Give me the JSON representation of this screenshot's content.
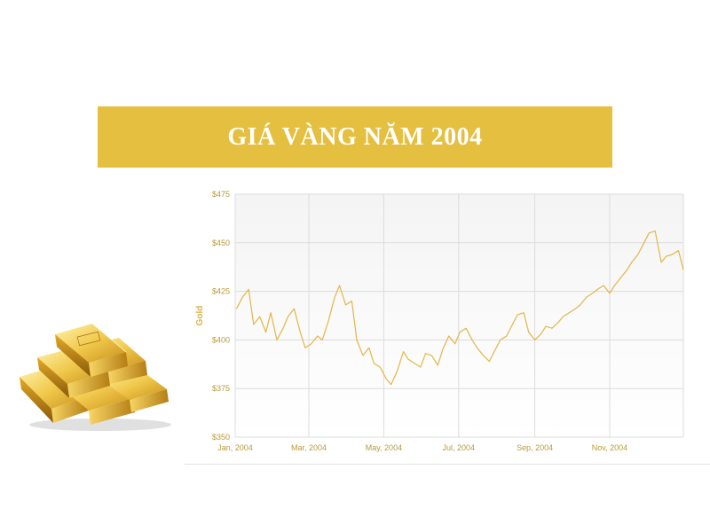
{
  "banner": {
    "title": "GIÁ VÀNG NĂM 2004"
  },
  "colors": {
    "accent": "#e5bf3f",
    "line": "#e2b648",
    "tick_text": "#b89a3a"
  },
  "illustration": {
    "icon": "gold-bars-icon"
  },
  "chart_data": {
    "type": "line",
    "title": "",
    "xlabel": "",
    "ylabel": "Gold",
    "ylim": [
      350,
      475
    ],
    "y_ticks": [
      "$350",
      "$375",
      "$400",
      "$425",
      "$450",
      "$475"
    ],
    "y_tick_values": [
      350,
      375,
      400,
      425,
      450,
      475
    ],
    "x_ticks": [
      "Jan, 2004",
      "Mar, 2004",
      "May, 2004",
      "Jul, 2004",
      "Sep, 2004",
      "Nov, 2004"
    ],
    "x_tick_dates": [
      "2004-01-01",
      "2004-03-01",
      "2004-05-01",
      "2004-07-01",
      "2004-09-01",
      "2004-11-01"
    ],
    "xlim": [
      "2004-01-01",
      "2004-12-31"
    ],
    "grid": true,
    "legend": "none",
    "series": [
      {
        "x": [
          "2004-01-02",
          "2004-01-07",
          "2004-01-12",
          "2004-01-16",
          "2004-01-21",
          "2004-01-26",
          "2004-01-30",
          "2004-02-04",
          "2004-02-09",
          "2004-02-13",
          "2004-02-18",
          "2004-02-23",
          "2004-02-27",
          "2004-03-03",
          "2004-03-08",
          "2004-03-12",
          "2004-03-17",
          "2004-03-22",
          "2004-03-26",
          "2004-03-31",
          "2004-04-05",
          "2004-04-09",
          "2004-04-14",
          "2004-04-19",
          "2004-04-23",
          "2004-04-28",
          "2004-05-03",
          "2004-05-07",
          "2004-05-12",
          "2004-05-17",
          "2004-05-21",
          "2004-05-26",
          "2004-05-31",
          "2004-06-04",
          "2004-06-09",
          "2004-06-14",
          "2004-06-18",
          "2004-06-23",
          "2004-06-28",
          "2004-07-02",
          "2004-07-07",
          "2004-07-12",
          "2004-07-16",
          "2004-07-21",
          "2004-07-26",
          "2004-07-30",
          "2004-08-04",
          "2004-08-09",
          "2004-08-13",
          "2004-08-18",
          "2004-08-23",
          "2004-08-27",
          "2004-09-01",
          "2004-09-06",
          "2004-09-10",
          "2004-09-15",
          "2004-09-20",
          "2004-09-24",
          "2004-09-29",
          "2004-10-04",
          "2004-10-08",
          "2004-10-13",
          "2004-10-18",
          "2004-10-22",
          "2004-10-27",
          "2004-11-01",
          "2004-11-05",
          "2004-11-10",
          "2004-11-15",
          "2004-11-19",
          "2004-11-24",
          "2004-11-29",
          "2004-12-03",
          "2004-12-08",
          "2004-12-13",
          "2004-12-17",
          "2004-12-22",
          "2004-12-27",
          "2004-12-31"
        ],
        "values": [
          416,
          422,
          426,
          408,
          412,
          404,
          414,
          400,
          406,
          412,
          416,
          404,
          396,
          398,
          402,
          400,
          410,
          422,
          428,
          418,
          420,
          400,
          392,
          396,
          388,
          386,
          380,
          377,
          384,
          394,
          390,
          388,
          386,
          393,
          392,
          387,
          395,
          402,
          398,
          404,
          406,
          400,
          396,
          392,
          389,
          394,
          400,
          402,
          407,
          413,
          414,
          404,
          400,
          403,
          407,
          406,
          409,
          412,
          414,
          416,
          418,
          422,
          424,
          426,
          428,
          424,
          428,
          432,
          436,
          440,
          444,
          450,
          455,
          456,
          440,
          443,
          444,
          446,
          436
        ]
      }
    ]
  }
}
